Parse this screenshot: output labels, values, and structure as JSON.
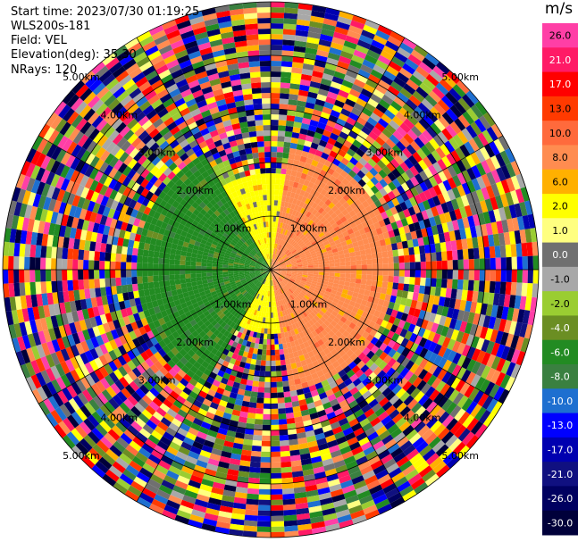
{
  "header": {
    "start_time": "Start time: 2023/07/30 01:19:25",
    "instrument": "WLS200s-181",
    "field": "Field: VEL",
    "elevation": "Elevation(deg): 35.30",
    "nrays": "NRays: 120"
  },
  "chart_data": {
    "type": "heatmap",
    "projection": "polar-ppi",
    "field": "VEL",
    "units": "m/s",
    "n_rays": 120,
    "range_rings_km": [
      1.0,
      2.0,
      3.0,
      4.0,
      5.0
    ],
    "range_ring_labels": [
      "1.00km",
      "2.00km",
      "3.00km",
      "4.00km",
      "5.00km"
    ],
    "colorbar": {
      "label": "m/s",
      "ticks": [
        "26.0",
        "21.0",
        "17.0",
        "13.0",
        "10.0",
        "8.0",
        "6.0",
        "2.0",
        "1.0",
        "0.0",
        "-1.0",
        "-2.0",
        "-4.0",
        "-6.0",
        "-8.0",
        "-10.0",
        "-13.0",
        "-17.0",
        "-21.0",
        "-26.0",
        "-30.0"
      ],
      "colors": [
        "#ff3fa6",
        "#ff1a66",
        "#ff0000",
        "#ff3a00",
        "#ff6a3c",
        "#ff8c50",
        "#ffb000",
        "#ffff00",
        "#ffff80",
        "#707070",
        "#a8a8a8",
        "#9acd32",
        "#6b8e23",
        "#228b22",
        "#3a8040",
        "#1e6fd0",
        "#0000ff",
        "#0000b0",
        "#101080",
        "#000060",
        "#00003a"
      ]
    },
    "regions": [
      {
        "azimuth_deg": [
          10,
          170
        ],
        "range_km": [
          0,
          2.3
        ],
        "velocity_ms": 8.0
      },
      {
        "azimuth_deg": [
          90,
          210
        ],
        "range_km": [
          0,
          1.2
        ],
        "velocity_ms": 2.0
      },
      {
        "azimuth_deg": [
          330,
          40
        ],
        "range_km": [
          0,
          1.8
        ],
        "velocity_ms": 2.0
      },
      {
        "azimuth_deg": [
          210,
          330
        ],
        "range_km": [
          0,
          2.5
        ],
        "velocity_ms": -6.0
      },
      {
        "azimuth_deg": [
          300,
          340
        ],
        "range_km": [
          1.2,
          2.2
        ],
        "velocity_ms": -2.0
      }
    ],
    "outer_noise_range_km": [
      2.5,
      5.0
    ],
    "grid": true
  }
}
